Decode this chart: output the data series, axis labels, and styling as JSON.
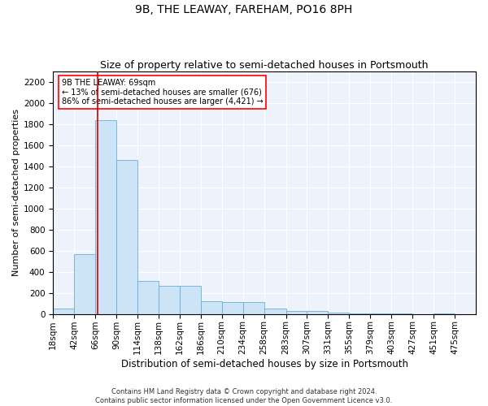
{
  "title1": "9B, THE LEAWAY, FAREHAM, PO16 8PH",
  "title2": "Size of property relative to semi-detached houses in Portsmouth",
  "xlabel": "Distribution of semi-detached houses by size in Portsmouth",
  "ylabel": "Number of semi-detached properties",
  "footer1": "Contains HM Land Registry data © Crown copyright and database right 2024.",
  "footer2": "Contains public sector information licensed under the Open Government Licence v3.0.",
  "annotation_title": "9B THE LEAWAY: 69sqm",
  "annotation_line1": "← 13% of semi-detached houses are smaller (676)",
  "annotation_line2": "86% of semi-detached houses are larger (4,421) →",
  "property_size": 69,
  "bar_color": "#cce4f5",
  "bar_edge_color": "#6aadd5",
  "vline_color": "#cc0000",
  "background_color": "#eef2fb",
  "bin_edges": [
    18,
    42,
    66,
    90,
    114,
    138,
    162,
    186,
    210,
    234,
    258,
    283,
    307,
    331,
    355,
    379,
    403,
    427,
    451,
    475,
    499
  ],
  "bin_counts": [
    55,
    570,
    1840,
    1460,
    310,
    270,
    270,
    120,
    115,
    110,
    55,
    30,
    30,
    10,
    5,
    8,
    5,
    0,
    5,
    0
  ],
  "ylim": [
    0,
    2300
  ],
  "yticks": [
    0,
    200,
    400,
    600,
    800,
    1000,
    1200,
    1400,
    1600,
    1800,
    2000,
    2200
  ],
  "title1_fontsize": 10,
  "title2_fontsize": 9,
  "xlabel_fontsize": 8.5,
  "ylabel_fontsize": 8,
  "tick_fontsize": 7.5,
  "footer_fontsize": 6,
  "annot_fontsize": 7
}
